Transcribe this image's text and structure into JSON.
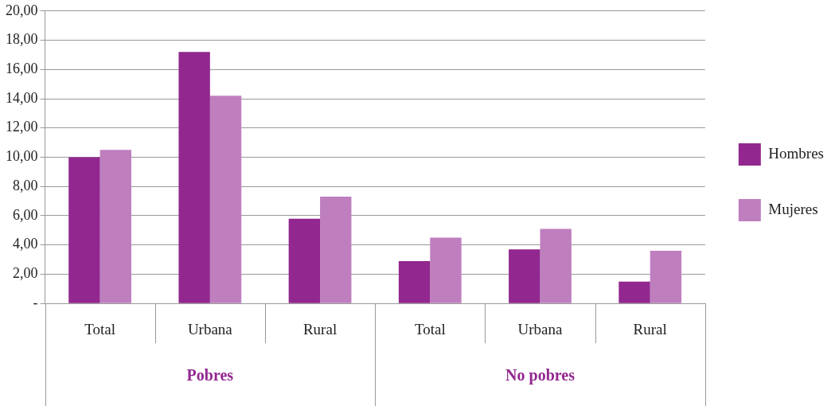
{
  "chart_data": {
    "type": "bar",
    "categories": [
      "Total",
      "Urbana",
      "Rural",
      "Total",
      "Urbana",
      "Rural"
    ],
    "series": [
      {
        "name": "Hombres",
        "color": "#92278f",
        "values": [
          10.0,
          17.2,
          5.8,
          2.9,
          3.7,
          1.5
        ]
      },
      {
        "name": "Mujeres",
        "color": "#bf7fbf",
        "values": [
          10.5,
          14.2,
          7.3,
          4.5,
          5.1,
          3.6
        ]
      }
    ],
    "ylim": [
      0,
      20
    ],
    "yticks": [
      {
        "value": 0,
        "label": "-"
      },
      {
        "value": 2,
        "label": "2,00"
      },
      {
        "value": 4,
        "label": "4,00"
      },
      {
        "value": 6,
        "label": "6,00"
      },
      {
        "value": 8,
        "label": "8,00"
      },
      {
        "value": 10,
        "label": "10,00"
      },
      {
        "value": 12,
        "label": "12,00"
      },
      {
        "value": 14,
        "label": "14,00"
      },
      {
        "value": 16,
        "label": "16,00"
      },
      {
        "value": 18,
        "label": "18,00"
      },
      {
        "value": 20,
        "label": "20,00"
      }
    ],
    "grid": "y",
    "legend": "right",
    "annotations": [
      "Pobres",
      "No pobres"
    ]
  }
}
